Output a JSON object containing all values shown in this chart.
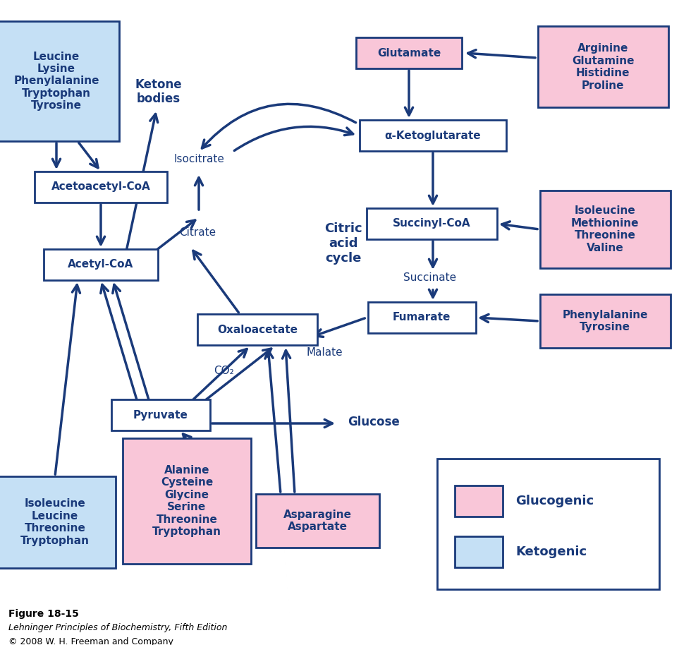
{
  "bg_color": "#ffffff",
  "arrow_color": "#1a3a7a",
  "pink_color": "#f9c6d8",
  "blue_color": "#c5e0f5",
  "text_dark": "#1a3a7a",
  "text_pink_bold": "#1a1a1a",
  "text_blue_bold": "#1a1a1a",
  "figure_caption": "Figure 18-15",
  "figure_italic": "Lehninger Principles of Biochemistry, Fifth Edition",
  "figure_copy": "© 2008 W. H. Freeman and Company"
}
